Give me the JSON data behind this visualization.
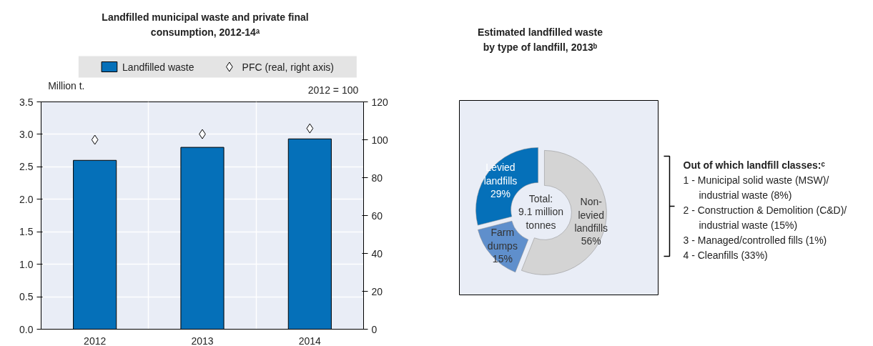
{
  "chart_data": [
    {
      "type": "bar",
      "title": "Landfilled municipal waste and private final consumption, 2012-14ᵃ",
      "ylabel": "Million t.",
      "y2label": "2012 = 100",
      "categories": [
        "2012",
        "2013",
        "2014"
      ],
      "series": [
        {
          "name": "Landfilled waste",
          "color": "#0570b9",
          "values": [
            2.6,
            2.8,
            2.93
          ]
        },
        {
          "name": "PFC (real, right axis)",
          "type": "scatter",
          "axis": "y2",
          "marker": "diamond",
          "color": "#ffffff",
          "values": [
            100,
            103,
            106
          ]
        }
      ],
      "ylim": [
        0,
        3.5
      ],
      "yticks": [
        {
          "value": 0,
          "label": "0.0"
        },
        {
          "value": 0.5,
          "label": "0.5"
        },
        {
          "value": 1,
          "label": "1.0"
        },
        {
          "value": 1.5,
          "label": "1.5"
        },
        {
          "value": 2,
          "label": "2.0"
        },
        {
          "value": 2.5,
          "label": "2.5"
        },
        {
          "value": 3,
          "label": "3.0"
        },
        {
          "value": 3.5,
          "label": "3.5"
        }
      ],
      "y2lim": [
        0,
        120
      ],
      "y2ticks": [
        0,
        20,
        40,
        60,
        80,
        100,
        120
      ],
      "grid": true,
      "legend": "top"
    },
    {
      "type": "donut",
      "title": "Estimated landfilled waste by type of landfill, 2013ᵇ",
      "categories": [
        "Non-levied landfills",
        "Farm dumps",
        "Levied landfills"
      ],
      "values": [
        56,
        15,
        29
      ],
      "colors": [
        "#d4d4d4",
        "#5f8fcc",
        "#0570b9"
      ],
      "value_labels": [
        "56%",
        "15%",
        "29%"
      ],
      "annotations": [
        "Total:\n9.1 million\ntonnes",
        "Out of which landfill classes:ᶜ",
        "1 - Municipal solid waste (MSW)/industrial waste (8%)",
        "2 - Construction & Demolition (C&D)/industrial waste (15%)",
        "3 - Managed/controlled fills (1%)",
        "4 - Cleanfills (33%)"
      ]
    }
  ]
}
